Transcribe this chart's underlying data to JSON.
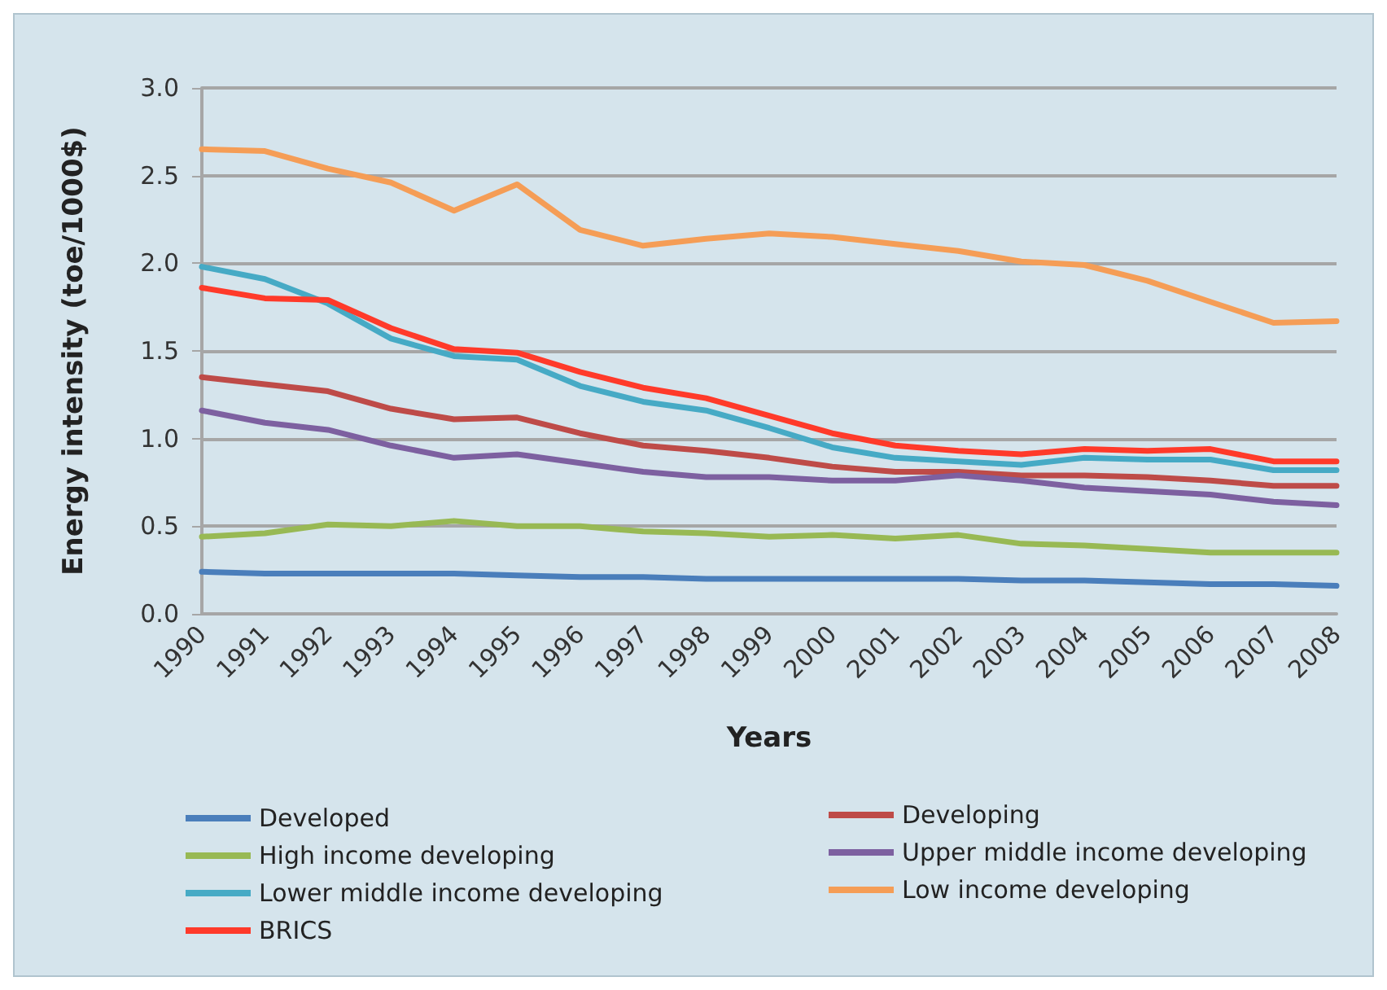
{
  "chart_data": {
    "type": "line",
    "xlabel": "Years",
    "ylabel": "Energy intensity (toe/1000$)",
    "categories": [
      "1990",
      "1991",
      "1992",
      "1993",
      "1994",
      "1995",
      "1996",
      "1997",
      "1998",
      "1999",
      "2000",
      "2001",
      "2002",
      "2003",
      "2004",
      "2005",
      "2006",
      "2007",
      "2008"
    ],
    "ylim": [
      0,
      3
    ],
    "yticks": [
      {
        "value": 0,
        "label": "0.0"
      },
      {
        "value": 0.5,
        "label": "0.5"
      },
      {
        "value": 1,
        "label": "1.0"
      },
      {
        "value": 1.5,
        "label": "1.5"
      },
      {
        "value": 2,
        "label": "2.0"
      },
      {
        "value": 2.5,
        "label": "2.5"
      },
      {
        "value": 3,
        "label": "3.0"
      }
    ],
    "grid": "y",
    "legend": "bottom",
    "marker": "none",
    "line_style": "solid",
    "series": [
      {
        "name": "Developed",
        "color": "#4a7ebb",
        "values": [
          0.24,
          0.23,
          0.23,
          0.23,
          0.23,
          0.22,
          0.21,
          0.21,
          0.2,
          0.2,
          0.2,
          0.2,
          0.2,
          0.19,
          0.19,
          0.18,
          0.17,
          0.17,
          0.16
        ]
      },
      {
        "name": "Developing",
        "color": "#be4b48",
        "values": [
          1.35,
          1.31,
          1.27,
          1.17,
          1.11,
          1.12,
          1.03,
          0.96,
          0.93,
          0.89,
          0.84,
          0.81,
          0.81,
          0.79,
          0.79,
          0.78,
          0.76,
          0.73,
          0.73
        ]
      },
      {
        "name": "High income developing",
        "color": "#98b954",
        "values": [
          0.44,
          0.46,
          0.51,
          0.5,
          0.53,
          0.5,
          0.5,
          0.47,
          0.46,
          0.44,
          0.45,
          0.43,
          0.45,
          0.4,
          0.39,
          0.37,
          0.35,
          0.35,
          0.35
        ]
      },
      {
        "name": "Upper middle income developing",
        "color": "#7d60a0",
        "values": [
          1.16,
          1.09,
          1.05,
          0.96,
          0.89,
          0.91,
          0.86,
          0.81,
          0.78,
          0.78,
          0.76,
          0.76,
          0.79,
          0.76,
          0.72,
          0.7,
          0.68,
          0.64,
          0.62
        ]
      },
      {
        "name": "Lower middle income developing",
        "color": "#46aac5",
        "values": [
          1.98,
          1.91,
          1.77,
          1.57,
          1.47,
          1.45,
          1.3,
          1.21,
          1.16,
          1.06,
          0.95,
          0.89,
          0.87,
          0.85,
          0.89,
          0.88,
          0.88,
          0.82,
          0.82
        ]
      },
      {
        "name": "Low income developing",
        "color": "#f59d56",
        "values": [
          2.65,
          2.64,
          2.54,
          2.46,
          2.3,
          2.45,
          2.19,
          2.1,
          2.14,
          2.17,
          2.15,
          2.11,
          2.07,
          2.01,
          1.99,
          1.9,
          1.78,
          1.66,
          1.67
        ]
      },
      {
        "name": "BRICS",
        "color": "#ff3a2a",
        "values": [
          1.86,
          1.8,
          1.79,
          1.63,
          1.51,
          1.49,
          1.38,
          1.29,
          1.23,
          1.13,
          1.03,
          0.96,
          0.93,
          0.91,
          0.94,
          0.93,
          0.94,
          0.87,
          0.87
        ]
      }
    ]
  }
}
